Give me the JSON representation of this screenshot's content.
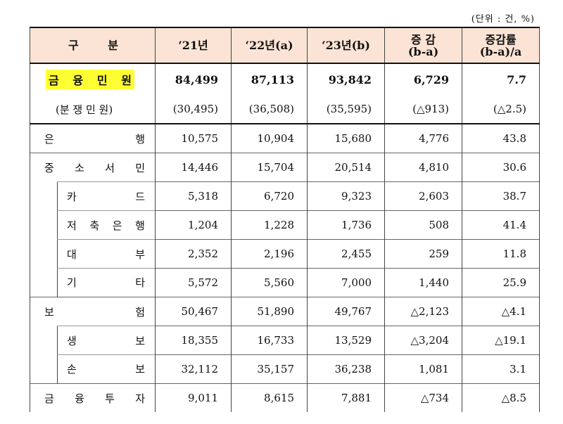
{
  "unit_note": "(단위 : 건, %)",
  "header": {
    "col0": [
      "구",
      "분"
    ],
    "col1": "‘21년",
    "col2": "‘22년(a)",
    "col3": "‘23년(b)",
    "col4_line1": "증 감",
    "col4_line2": "(b-a)",
    "col5_line1": "증감률",
    "col5_line2": "(b-a)/a"
  },
  "summary": {
    "label_chars": [
      "금",
      "융",
      "민",
      "원"
    ],
    "values": [
      "84,499",
      "87,113",
      "93,842",
      "6,729",
      "7.7"
    ]
  },
  "dispute": {
    "label": "(분 쟁 민 원)",
    "values": [
      "(30,495)",
      "(36,508)",
      "(35,595)",
      "(△913)",
      "(△2.5)"
    ]
  },
  "rows": [
    {
      "level": 1,
      "chars": [
        "은",
        "행"
      ],
      "values": [
        "10,575",
        "10,904",
        "15,680",
        "4,776",
        "43.8"
      ]
    },
    {
      "level": 1,
      "chars": [
        "중",
        "소",
        "서",
        "민"
      ],
      "values": [
        "14,446",
        "15,704",
        "20,514",
        "4,810",
        "30.6"
      ]
    },
    {
      "level": 2,
      "chars": [
        "카",
        "드"
      ],
      "values": [
        "5,318",
        "6,720",
        "9,323",
        "2,603",
        "38.7"
      ]
    },
    {
      "level": 2,
      "chars": [
        "저",
        "축",
        "은",
        "행"
      ],
      "values": [
        "1,204",
        "1,228",
        "1,736",
        "508",
        "41.4"
      ]
    },
    {
      "level": 2,
      "chars": [
        "대",
        "부"
      ],
      "values": [
        "2,352",
        "2,196",
        "2,455",
        "259",
        "11.8"
      ]
    },
    {
      "level": 2,
      "chars": [
        "기",
        "타"
      ],
      "values": [
        "5,572",
        "5,560",
        "7,000",
        "1,440",
        "25.9"
      ]
    },
    {
      "level": 1,
      "chars": [
        "보",
        "험"
      ],
      "values": [
        "50,467",
        "51,890",
        "49,767",
        "△2,123",
        "△4.1"
      ]
    },
    {
      "level": 2,
      "chars": [
        "생",
        "보"
      ],
      "values": [
        "18,355",
        "16,733",
        "13,529",
        "△3,204",
        "△19.1"
      ]
    },
    {
      "level": 2,
      "chars": [
        "손",
        "보"
      ],
      "values": [
        "32,112",
        "35,157",
        "36,238",
        "1,081",
        "3.1"
      ]
    },
    {
      "level": 1,
      "chars": [
        "금",
        "융",
        "투",
        "자"
      ],
      "values": [
        "9,011",
        "8,615",
        "7,881",
        "△734",
        "△8.5"
      ]
    }
  ]
}
